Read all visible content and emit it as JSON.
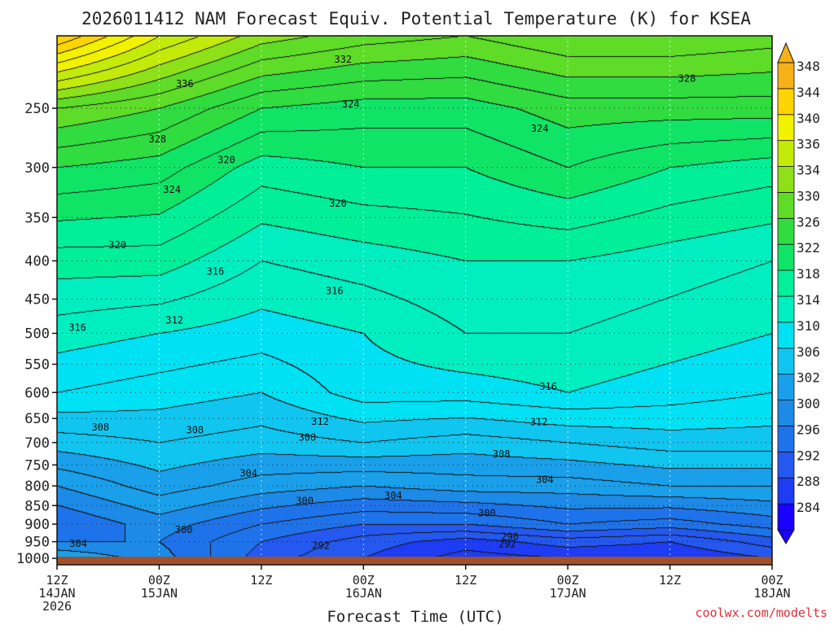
{
  "chart_data": {
    "type": "heatmap",
    "subtype": "time-height filled contour",
    "title": "2026011412 NAM Forecast Equiv. Potential Temperature (K) for KSEA",
    "xlabel": "Forecast Time (UTC)",
    "ylabel": "",
    "credit": "coolwx.com/modelts",
    "y_scale": "log-pressure",
    "y_inverted": true,
    "y_range": [
      1020,
      200
    ],
    "y_ticks": [
      250,
      300,
      350,
      400,
      450,
      500,
      550,
      600,
      650,
      700,
      750,
      800,
      850,
      900,
      950,
      1000
    ],
    "x_range_hours": [
      0,
      84
    ],
    "x_ticks": [
      {
        "hour": 0,
        "line1": "12Z",
        "line2": "14JAN",
        "line3": "2026"
      },
      {
        "hour": 12,
        "line1": "00Z",
        "line2": "15JAN",
        "line3": ""
      },
      {
        "hour": 24,
        "line1": "12Z",
        "line2": "",
        "line3": ""
      },
      {
        "hour": 36,
        "line1": "00Z",
        "line2": "16JAN",
        "line3": ""
      },
      {
        "hour": 48,
        "line1": "12Z",
        "line2": "",
        "line3": ""
      },
      {
        "hour": 60,
        "line1": "00Z",
        "line2": "17JAN",
        "line3": ""
      },
      {
        "hour": 72,
        "line1": "12Z",
        "line2": "",
        "line3": ""
      },
      {
        "hour": 84,
        "line1": "00Z",
        "line2": "18JAN",
        "line3": ""
      }
    ],
    "grid": true,
    "colorbar": {
      "levels": [
        284,
        288,
        292,
        296,
        300,
        302,
        306,
        310,
        314,
        318,
        322,
        326,
        330,
        334,
        336,
        340,
        344,
        348
      ],
      "colors": [
        "#1a00ff",
        "#1e3cf4",
        "#2458ee",
        "#1f73ea",
        "#1c8ae6",
        "#1aa0ea",
        "#10c6f0",
        "#00e2f4",
        "#00eec0",
        "#00ef98",
        "#10e466",
        "#30dc40",
        "#5edc28",
        "#8ee018",
        "#c4ea0a",
        "#f2f200",
        "#ffd400",
        "#f6b018"
      ],
      "labels": [
        "348",
        "344",
        "340",
        "336",
        "334",
        "330",
        "326",
        "322",
        "318",
        "314",
        "310",
        "306",
        "302",
        "300",
        "296",
        "292",
        "288",
        "284"
      ]
    },
    "profile_columns": [
      {
        "hour": 0,
        "theta_e": [
          {
            "p": 200,
            "t": 348
          },
          {
            "p": 250,
            "t": 332
          },
          {
            "p": 300,
            "t": 326
          },
          {
            "p": 400,
            "t": 319
          },
          {
            "p": 500,
            "t": 315
          },
          {
            "p": 600,
            "t": 312
          },
          {
            "p": 700,
            "t": 307
          },
          {
            "p": 800,
            "t": 302
          },
          {
            "p": 900,
            "t": 298
          },
          {
            "p": 950,
            "t": 300
          },
          {
            "p": 1000,
            "t": 304
          }
        ]
      },
      {
        "hour": 12,
        "theta_e": [
          {
            "p": 200,
            "t": 340
          },
          {
            "p": 250,
            "t": 330
          },
          {
            "p": 300,
            "t": 325
          },
          {
            "p": 400,
            "t": 319
          },
          {
            "p": 500,
            "t": 314
          },
          {
            "p": 600,
            "t": 311
          },
          {
            "p": 700,
            "t": 308
          },
          {
            "p": 800,
            "t": 305
          },
          {
            "p": 900,
            "t": 301
          },
          {
            "p": 950,
            "t": 300
          },
          {
            "p": 1000,
            "t": 301
          }
        ]
      },
      {
        "hour": 24,
        "theta_e": [
          {
            "p": 200,
            "t": 335
          },
          {
            "p": 250,
            "t": 326
          },
          {
            "p": 300,
            "t": 321
          },
          {
            "p": 400,
            "t": 316
          },
          {
            "p": 500,
            "t": 313
          },
          {
            "p": 600,
            "t": 310
          },
          {
            "p": 700,
            "t": 307
          },
          {
            "p": 800,
            "t": 303
          },
          {
            "p": 900,
            "t": 298
          },
          {
            "p": 950,
            "t": 296
          },
          {
            "p": 1000,
            "t": 295
          }
        ]
      },
      {
        "hour": 36,
        "theta_e": [
          {
            "p": 200,
            "t": 333
          },
          {
            "p": 250,
            "t": 325
          },
          {
            "p": 300,
            "t": 322
          },
          {
            "p": 400,
            "t": 317
          },
          {
            "p": 500,
            "t": 314
          },
          {
            "p": 600,
            "t": 313
          },
          {
            "p": 700,
            "t": 308
          },
          {
            "p": 800,
            "t": 302
          },
          {
            "p": 900,
            "t": 296
          },
          {
            "p": 950,
            "t": 293
          },
          {
            "p": 1000,
            "t": 292
          }
        ]
      },
      {
        "hour": 48,
        "theta_e": [
          {
            "p": 200,
            "t": 332
          },
          {
            "p": 250,
            "t": 325
          },
          {
            "p": 300,
            "t": 322
          },
          {
            "p": 400,
            "t": 318
          },
          {
            "p": 500,
            "t": 316
          },
          {
            "p": 600,
            "t": 313
          },
          {
            "p": 700,
            "t": 307
          },
          {
            "p": 800,
            "t": 303
          },
          {
            "p": 900,
            "t": 296
          },
          {
            "p": 950,
            "t": 291
          },
          {
            "p": 1000,
            "t": 289
          }
        ]
      },
      {
        "hour": 60,
        "theta_e": [
          {
            "p": 200,
            "t": 334
          },
          {
            "p": 250,
            "t": 327
          },
          {
            "p": 300,
            "t": 324
          },
          {
            "p": 400,
            "t": 318
          },
          {
            "p": 500,
            "t": 316
          },
          {
            "p": 600,
            "t": 314
          },
          {
            "p": 700,
            "t": 308
          },
          {
            "p": 800,
            "t": 303
          },
          {
            "p": 900,
            "t": 298
          },
          {
            "p": 950,
            "t": 293
          },
          {
            "p": 1000,
            "t": 290
          }
        ]
      },
      {
        "hour": 72,
        "theta_e": [
          {
            "p": 200,
            "t": 334
          },
          {
            "p": 250,
            "t": 327
          },
          {
            "p": 300,
            "t": 322
          },
          {
            "p": 400,
            "t": 317
          },
          {
            "p": 500,
            "t": 315
          },
          {
            "p": 600,
            "t": 313
          },
          {
            "p": 700,
            "t": 309
          },
          {
            "p": 800,
            "t": 304
          },
          {
            "p": 900,
            "t": 297
          },
          {
            "p": 950,
            "t": 292
          },
          {
            "p": 1000,
            "t": 290
          }
        ]
      },
      {
        "hour": 84,
        "theta_e": [
          {
            "p": 200,
            "t": 333
          },
          {
            "p": 250,
            "t": 327
          },
          {
            "p": 300,
            "t": 321
          },
          {
            "p": 400,
            "t": 316
          },
          {
            "p": 500,
            "t": 314
          },
          {
            "p": 600,
            "t": 312
          },
          {
            "p": 700,
            "t": 309
          },
          {
            "p": 800,
            "t": 304
          },
          {
            "p": 900,
            "t": 299
          },
          {
            "p": 950,
            "t": 295
          },
          {
            "p": 1000,
            "t": 292
          }
        ]
      }
    ],
    "contour_labels": [
      {
        "hour": 33.6,
        "p": 215,
        "text": "332"
      },
      {
        "hour": 15.0,
        "p": 232,
        "text": "336"
      },
      {
        "hour": 74.0,
        "p": 228,
        "text": "328"
      },
      {
        "hour": 34.5,
        "p": 247,
        "text": "324"
      },
      {
        "hour": 56.7,
        "p": 266,
        "text": "324"
      },
      {
        "hour": 11.8,
        "p": 275,
        "text": "328"
      },
      {
        "hour": 19.9,
        "p": 293,
        "text": "320"
      },
      {
        "hour": 13.5,
        "p": 321,
        "text": "324"
      },
      {
        "hour": 33.0,
        "p": 335,
        "text": "320"
      },
      {
        "hour": 7.1,
        "p": 381,
        "text": "320"
      },
      {
        "hour": 18.6,
        "p": 413,
        "text": "316"
      },
      {
        "hour": 32.6,
        "p": 439,
        "text": "316"
      },
      {
        "hour": 2.4,
        "p": 491,
        "text": "316"
      },
      {
        "hour": 13.8,
        "p": 480,
        "text": "312"
      },
      {
        "hour": 57.7,
        "p": 589,
        "text": "316"
      },
      {
        "hour": 30.9,
        "p": 656,
        "text": "312"
      },
      {
        "hour": 56.6,
        "p": 657,
        "text": "312"
      },
      {
        "hour": 5.1,
        "p": 668,
        "text": "308"
      },
      {
        "hour": 16.2,
        "p": 674,
        "text": "308"
      },
      {
        "hour": 29.4,
        "p": 689,
        "text": "308"
      },
      {
        "hour": 52.2,
        "p": 725,
        "text": "308"
      },
      {
        "hour": 22.5,
        "p": 769,
        "text": "304"
      },
      {
        "hour": 57.3,
        "p": 785,
        "text": "304"
      },
      {
        "hour": 39.5,
        "p": 824,
        "text": "304"
      },
      {
        "hour": 29.1,
        "p": 838,
        "text": "300"
      },
      {
        "hour": 50.5,
        "p": 870,
        "text": "300"
      },
      {
        "hour": 14.9,
        "p": 916,
        "text": "300"
      },
      {
        "hour": 2.5,
        "p": 956,
        "text": "304"
      },
      {
        "hour": 31.0,
        "p": 962,
        "text": "292"
      },
      {
        "hour": 53.2,
        "p": 935,
        "text": "296"
      },
      {
        "hour": 52.9,
        "p": 957,
        "text": "292"
      }
    ]
  }
}
